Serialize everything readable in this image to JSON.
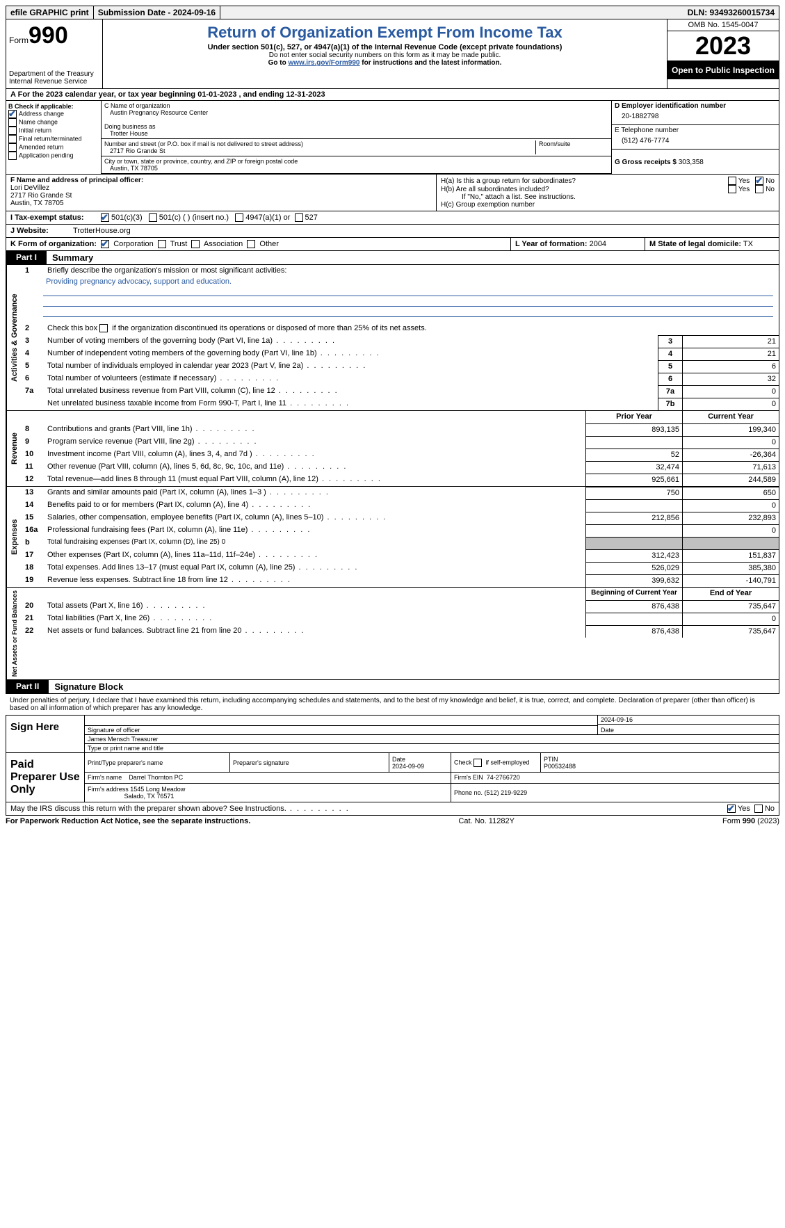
{
  "topbar": {
    "efile": "efile GRAPHIC print",
    "submission": "Submission Date - 2024-09-16",
    "dln": "DLN: 93493260015734"
  },
  "header": {
    "form_label": "Form",
    "form_number": "990",
    "dept": "Department of the Treasury\nInternal Revenue Service",
    "title": "Return of Organization Exempt From Income Tax",
    "subtitle": "Under section 501(c), 527, or 4947(a)(1) of the Internal Revenue Code (except private foundations)",
    "note1": "Do not enter social security numbers on this form as it may be made public.",
    "note2_prefix": "Go to ",
    "note2_link": "www.irs.gov/Form990",
    "note2_suffix": " for instructions and the latest information.",
    "omb": "OMB No. 1545-0047",
    "year": "2023",
    "inspection": "Open to Public Inspection"
  },
  "line_a": "For the 2023 calendar year, or tax year beginning 01-01-2023   , and ending 12-31-2023",
  "box_b": {
    "label": "B Check if applicable:",
    "items": [
      {
        "label": "Address change",
        "checked": true
      },
      {
        "label": "Name change",
        "checked": false
      },
      {
        "label": "Initial return",
        "checked": false
      },
      {
        "label": "Final return/terminated",
        "checked": false
      },
      {
        "label": "Amended return",
        "checked": false
      },
      {
        "label": "Application pending",
        "checked": false
      }
    ]
  },
  "box_c": {
    "name_label": "C Name of organization",
    "name": "Austin Pregnancy Resource Center",
    "dba_label": "Doing business as",
    "dba": "Trotter House",
    "street_label": "Number and street (or P.O. box if mail is not delivered to street address)",
    "room_label": "Room/suite",
    "street": "2717 Rio Grande St",
    "city_label": "City or town, state or province, country, and ZIP or foreign postal code",
    "city": "Austin, TX  78705"
  },
  "box_d": {
    "label": "D Employer identification number",
    "value": "20-1882798"
  },
  "box_e": {
    "label": "E Telephone number",
    "value": "(512) 476-7774"
  },
  "box_g": {
    "label": "G Gross receipts $",
    "value": "303,358"
  },
  "box_f": {
    "label": "F  Name and address of principal officer:",
    "name": "Lori DeVillez",
    "street": "2717 Rio Grande St",
    "city": "Austin, TX  78705"
  },
  "box_h": {
    "ha_label": "H(a)  Is this a group return for subordinates?",
    "ha_yes": false,
    "ha_no": true,
    "hb_label": "H(b)  Are all subordinates included?",
    "hb_note": "If \"No,\" attach a list. See instructions.",
    "hc_label": "H(c)  Group exemption number"
  },
  "box_i": {
    "label": "I   Tax-exempt status:",
    "c3_checked": true,
    "opts": [
      "501(c)(3)",
      "501(c) (  ) (insert no.)",
      "4947(a)(1) or",
      "527"
    ]
  },
  "box_j": {
    "label": "J   Website:",
    "value": "TrotterHouse.org"
  },
  "box_k": {
    "label": "K Form of organization:",
    "corp_checked": true,
    "opts": [
      "Corporation",
      "Trust",
      "Association",
      "Other"
    ]
  },
  "box_l": {
    "label": "L Year of formation:",
    "value": "2004"
  },
  "box_m": {
    "label": "M State of legal domicile:",
    "value": "TX"
  },
  "part1": {
    "tab": "Part I",
    "title": "Summary",
    "line1_label": "Briefly describe the organization's mission or most significant activities:",
    "line1_text": "Providing pregnancy advocacy, support and education.",
    "line2": "Check this box      if the organization discontinued its operations or disposed of more than 25% of its net assets.",
    "governance_label": "Activities & Governance",
    "revenue_label": "Revenue",
    "expenses_label": "Expenses",
    "netassets_label": "Net Assets or Fund Balances",
    "gov_lines": [
      {
        "n": "3",
        "d": "Number of voting members of the governing body (Part VI, line 1a)",
        "b": "3",
        "v": "21"
      },
      {
        "n": "4",
        "d": "Number of independent voting members of the governing body (Part VI, line 1b)",
        "b": "4",
        "v": "21"
      },
      {
        "n": "5",
        "d": "Total number of individuals employed in calendar year 2023 (Part V, line 2a)",
        "b": "5",
        "v": "6"
      },
      {
        "n": "6",
        "d": "Total number of volunteers (estimate if necessary)",
        "b": "6",
        "v": "32"
      },
      {
        "n": "7a",
        "d": "Total unrelated business revenue from Part VIII, column (C), line 12",
        "b": "7a",
        "v": "0"
      },
      {
        "n": "",
        "d": "Net unrelated business taxable income from Form 990-T, Part I, line 11",
        "b": "7b",
        "v": "0"
      }
    ],
    "prior_year": "Prior Year",
    "current_year": "Current Year",
    "rev_lines": [
      {
        "n": "8",
        "d": "Contributions and grants (Part VIII, line 1h)",
        "py": "893,135",
        "cy": "199,340"
      },
      {
        "n": "9",
        "d": "Program service revenue (Part VIII, line 2g)",
        "py": "",
        "cy": "0"
      },
      {
        "n": "10",
        "d": "Investment income (Part VIII, column (A), lines 3, 4, and 7d )",
        "py": "52",
        "cy": "-26,364"
      },
      {
        "n": "11",
        "d": "Other revenue (Part VIII, column (A), lines 5, 6d, 8c, 9c, 10c, and 11e)",
        "py": "32,474",
        "cy": "71,613"
      },
      {
        "n": "12",
        "d": "Total revenue—add lines 8 through 11 (must equal Part VIII, column (A), line 12)",
        "py": "925,661",
        "cy": "244,589"
      }
    ],
    "exp_lines": [
      {
        "n": "13",
        "d": "Grants and similar amounts paid (Part IX, column (A), lines 1–3 )",
        "py": "750",
        "cy": "650"
      },
      {
        "n": "14",
        "d": "Benefits paid to or for members (Part IX, column (A), line 4)",
        "py": "",
        "cy": "0"
      },
      {
        "n": "15",
        "d": "Salaries, other compensation, employee benefits (Part IX, column (A), lines 5–10)",
        "py": "212,856",
        "cy": "232,893"
      },
      {
        "n": "16a",
        "d": "Professional fundraising fees (Part IX, column (A), line 11e)",
        "py": "",
        "cy": "0"
      },
      {
        "n": "b",
        "d": "Total fundraising expenses (Part IX, column (D), line 25) 0",
        "py": "shade",
        "cy": "shade"
      },
      {
        "n": "17",
        "d": "Other expenses (Part IX, column (A), lines 11a–11d, 11f–24e)",
        "py": "312,423",
        "cy": "151,837"
      },
      {
        "n": "18",
        "d": "Total expenses. Add lines 13–17 (must equal Part IX, column (A), line 25)",
        "py": "526,029",
        "cy": "385,380"
      },
      {
        "n": "19",
        "d": "Revenue less expenses. Subtract line 18 from line 12",
        "py": "399,632",
        "cy": "-140,791"
      }
    ],
    "beg_year": "Beginning of Current Year",
    "end_year": "End of Year",
    "na_lines": [
      {
        "n": "20",
        "d": "Total assets (Part X, line 16)",
        "py": "876,438",
        "cy": "735,647"
      },
      {
        "n": "21",
        "d": "Total liabilities (Part X, line 26)",
        "py": "",
        "cy": "0"
      },
      {
        "n": "22",
        "d": "Net assets or fund balances. Subtract line 21 from line 20",
        "py": "876,438",
        "cy": "735,647"
      }
    ]
  },
  "part2": {
    "tab": "Part II",
    "title": "Signature Block",
    "declaration": "Under penalties of perjury, I declare that I have examined this return, including accompanying schedules and statements, and to the best of my knowledge and belief, it is true, correct, and complete. Declaration of preparer (other than officer) is based on all information of which preparer has any knowledge.",
    "sign_here": "Sign Here",
    "sig_date": "2024-09-16",
    "sig_officer_label": "Signature of officer",
    "sig_date_label": "Date",
    "officer_name": "James Mensch Treasurer",
    "officer_name_label": "Type or print name and title",
    "paid_prep": "Paid Preparer Use Only",
    "prep_name_label": "Print/Type preparer's name",
    "prep_sig_label": "Preparer's signature",
    "prep_date_label": "Date",
    "prep_date": "2024-09-09",
    "prep_check_label": "Check       if self-employed",
    "ptin_label": "PTIN",
    "ptin": "P00532488",
    "firm_name_label": "Firm's name",
    "firm_name": "Darrel Thornton PC",
    "firm_ein_label": "Firm's EIN",
    "firm_ein": "74-2766720",
    "firm_addr_label": "Firm's address",
    "firm_addr1": "1545 Long Meadow",
    "firm_addr2": "Salado, TX  76571",
    "firm_phone_label": "Phone no.",
    "firm_phone": "(512) 219-9229",
    "discuss": "May the IRS discuss this return with the preparer shown above? See Instructions.",
    "discuss_yes": true
  },
  "footer": {
    "left": "For Paperwork Reduction Act Notice, see the separate instructions.",
    "center": "Cat. No. 11282Y",
    "right": "Form 990 (2023)"
  }
}
